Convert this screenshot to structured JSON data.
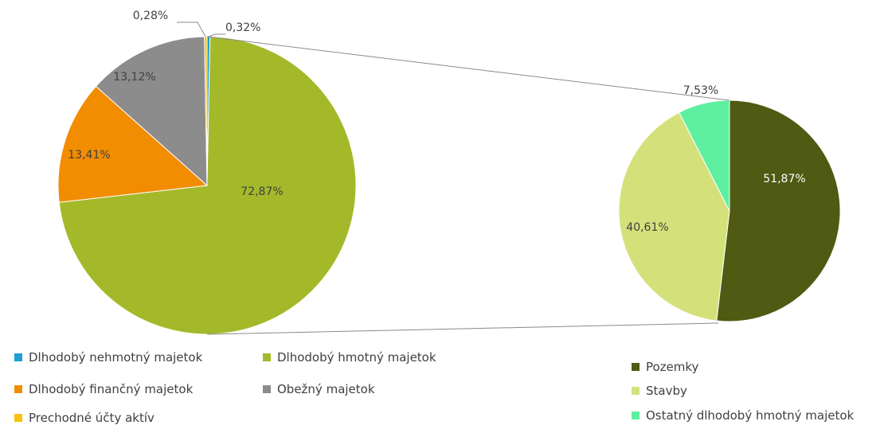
{
  "chart_data": [
    {
      "type": "pie",
      "title": "",
      "series": [
        {
          "label": "Dlhodobý nehmotný majetok",
          "value": 0.32,
          "display": "0,32%",
          "color": "#1e9fd5"
        },
        {
          "label": "Dlhodobý hmotný majetok",
          "value": 72.87,
          "display": "72,87%",
          "color": "#a4b92a"
        },
        {
          "label": "Dlhodobý finančný majetok",
          "value": 13.41,
          "display": "13,41%",
          "color": "#f28c00"
        },
        {
          "label": "Obežný majetok",
          "value": 13.12,
          "display": "13,12%",
          "color": "#8c8c8c"
        },
        {
          "label": "Prechodné účty aktív",
          "value": 0.28,
          "display": "0,28%",
          "color": "#f7c20a"
        }
      ],
      "legend_position": "bottom"
    },
    {
      "type": "pie",
      "title": "",
      "series": [
        {
          "label": "Pozemky",
          "value": 51.87,
          "display": "51,87%",
          "color": "#4f5a12"
        },
        {
          "label": "Stavby",
          "value": 40.61,
          "display": "40,61%",
          "color": "#d4e17a"
        },
        {
          "label": "Ostatný dlhodobý hmotný majetok",
          "value": 7.53,
          "display": "7,53%",
          "color": "#5ef0a0"
        }
      ],
      "legend_position": "bottom-right"
    }
  ]
}
